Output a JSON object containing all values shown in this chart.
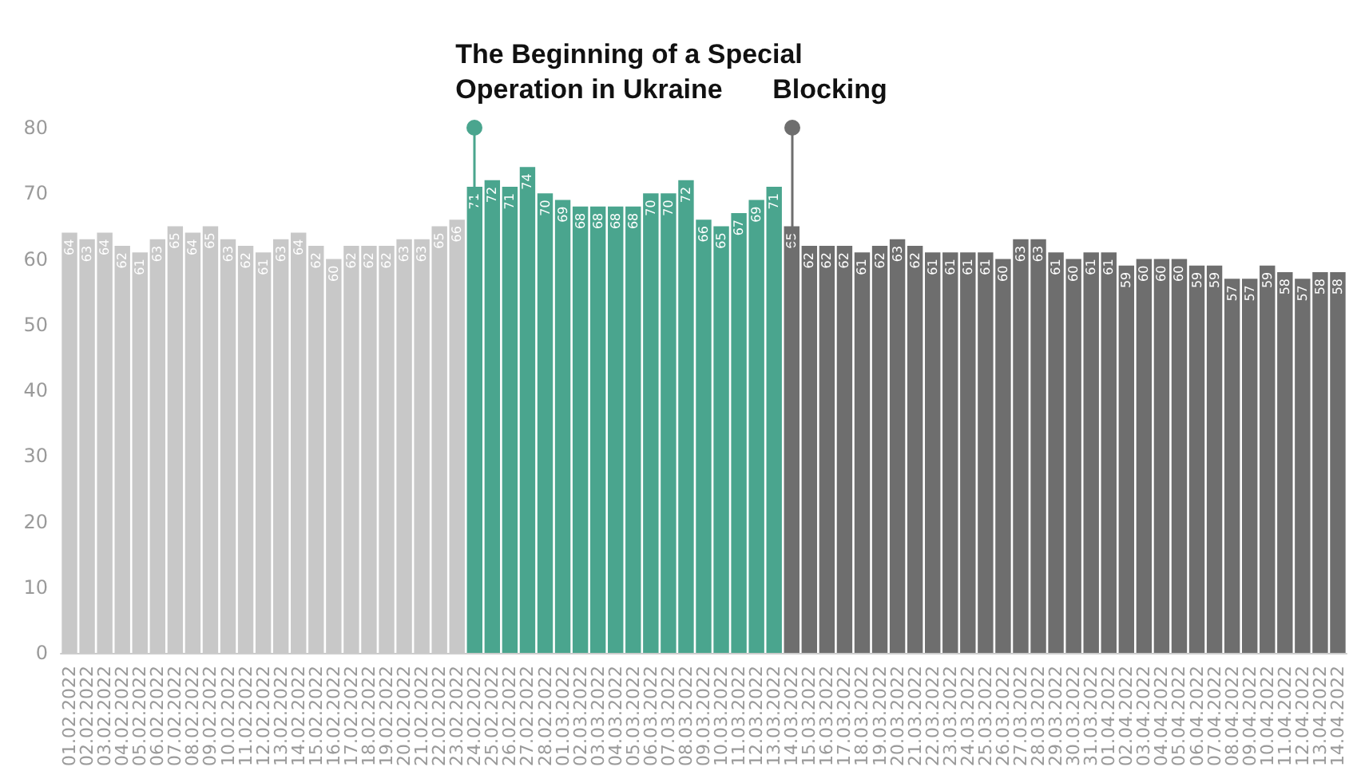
{
  "chart_data": {
    "type": "bar",
    "categories": [
      "01.02.2022",
      "02.02.2022",
      "03.02.2022",
      "04.02.2022",
      "05.02.2022",
      "06.02.2022",
      "07.02.2022",
      "08.02.2022",
      "09.02.2022",
      "10.02.2022",
      "11.02.2022",
      "12.02.2022",
      "13.02.2022",
      "14.02.2022",
      "15.02.2022",
      "16.02.2022",
      "17.02.2022",
      "18.02.2022",
      "19.02.2022",
      "20.02.2022",
      "21.02.2022",
      "22.02.2022",
      "23.02.2022",
      "24.02.2022",
      "25.02.2022",
      "26.02.2022",
      "27.02.2022",
      "28.02.2022",
      "01.03.2022",
      "02.03.2022",
      "03.03.2022",
      "04.03.2022",
      "05.03.2022",
      "06.03.2022",
      "07.03.2022",
      "08.03.2022",
      "09.03.2022",
      "10.03.2022",
      "11.03.2022",
      "12.03.2022",
      "13.03.2022",
      "14.03.2022",
      "15.03.2022",
      "16.03.2022",
      "17.03.2022",
      "18.03.2022",
      "19.03.2022",
      "20.03.2022",
      "21.03.2022",
      "22.03.2022",
      "23.03.2022",
      "24.03.2022",
      "25.03.2022",
      "26.03.2022",
      "27.03.2022",
      "28.03.2022",
      "29.03.2022",
      "30.03.2022",
      "31.03.2022",
      "01.04.2022",
      "02.04.2022",
      "03.04.2022",
      "04.04.2022",
      "05.04.2022",
      "06.04.2022",
      "07.04.2022",
      "08.04.2022",
      "09.04.2022",
      "10.04.2022",
      "11.04.2022",
      "12.04.2022",
      "13.04.2022",
      "14.04.2022"
    ],
    "values": [
      64,
      63,
      64,
      62,
      61,
      63,
      65,
      64,
      65,
      63,
      62,
      61,
      63,
      64,
      62,
      60,
      62,
      62,
      62,
      63,
      63,
      65,
      66,
      71,
      72,
      71,
      74,
      70,
      69,
      68,
      68,
      68,
      68,
      70,
      70,
      72,
      66,
      65,
      67,
      69,
      71,
      65,
      62,
      62,
      62,
      61,
      62,
      63,
      62,
      61,
      61,
      61,
      61,
      60,
      63,
      63,
      61,
      60,
      61,
      61,
      59,
      60,
      60,
      60,
      59,
      59,
      57,
      57,
      59,
      58,
      57,
      58,
      58
    ],
    "colors": [
      "#c8c8c8",
      "#c8c8c8",
      "#c8c8c8",
      "#c8c8c8",
      "#c8c8c8",
      "#c8c8c8",
      "#c8c8c8",
      "#c8c8c8",
      "#c8c8c8",
      "#c8c8c8",
      "#c8c8c8",
      "#c8c8c8",
      "#c8c8c8",
      "#c8c8c8",
      "#c8c8c8",
      "#c8c8c8",
      "#c8c8c8",
      "#c8c8c8",
      "#c8c8c8",
      "#c8c8c8",
      "#c8c8c8",
      "#c8c8c8",
      "#c8c8c8",
      "#4aa58e",
      "#4aa58e",
      "#4aa58e",
      "#4aa58e",
      "#4aa58e",
      "#4aa58e",
      "#4aa58e",
      "#4aa58e",
      "#4aa58e",
      "#4aa58e",
      "#4aa58e",
      "#4aa58e",
      "#4aa58e",
      "#4aa58e",
      "#4aa58e",
      "#4aa58e",
      "#4aa58e",
      "#4aa58e",
      "#6e6e6e",
      "#6e6e6e",
      "#6e6e6e",
      "#6e6e6e",
      "#6e6e6e",
      "#6e6e6e",
      "#6e6e6e",
      "#6e6e6e",
      "#6e6e6e",
      "#6e6e6e",
      "#6e6e6e",
      "#6e6e6e",
      "#6e6e6e",
      "#6e6e6e",
      "#6e6e6e",
      "#6e6e6e",
      "#6e6e6e",
      "#6e6e6e",
      "#6e6e6e",
      "#6e6e6e",
      "#6e6e6e",
      "#6e6e6e",
      "#6e6e6e",
      "#6e6e6e",
      "#6e6e6e",
      "#6e6e6e",
      "#6e6e6e",
      "#6e6e6e",
      "#6e6e6e",
      "#6e6e6e",
      "#6e6e6e",
      "#6e6e6e"
    ],
    "ylim": [
      0,
      80
    ],
    "yticks": [
      0,
      10,
      20,
      30,
      40,
      50,
      60,
      70,
      80
    ],
    "grid": false,
    "data_labels": true,
    "ref_lines": [
      {
        "axis": "x",
        "value": "24.02.2022",
        "label": "The Beginning of a Special Operation in Ukraine",
        "color": "#4aa58e"
      },
      {
        "axis": "x",
        "value": "14.03.2022",
        "label": "Blocking",
        "color": "#6e6e6e"
      }
    ]
  }
}
